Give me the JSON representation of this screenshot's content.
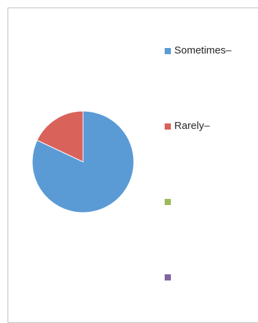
{
  "chart_data": {
    "type": "pie",
    "categories": [
      "Sometimes–",
      "Rarely–",
      "",
      ""
    ],
    "values": [
      82,
      18,
      0,
      0
    ],
    "colors": [
      "#5b9bd5",
      "#d9625b",
      "#9bbb59",
      "#8064a2"
    ],
    "legend_position": "right",
    "title": ""
  }
}
